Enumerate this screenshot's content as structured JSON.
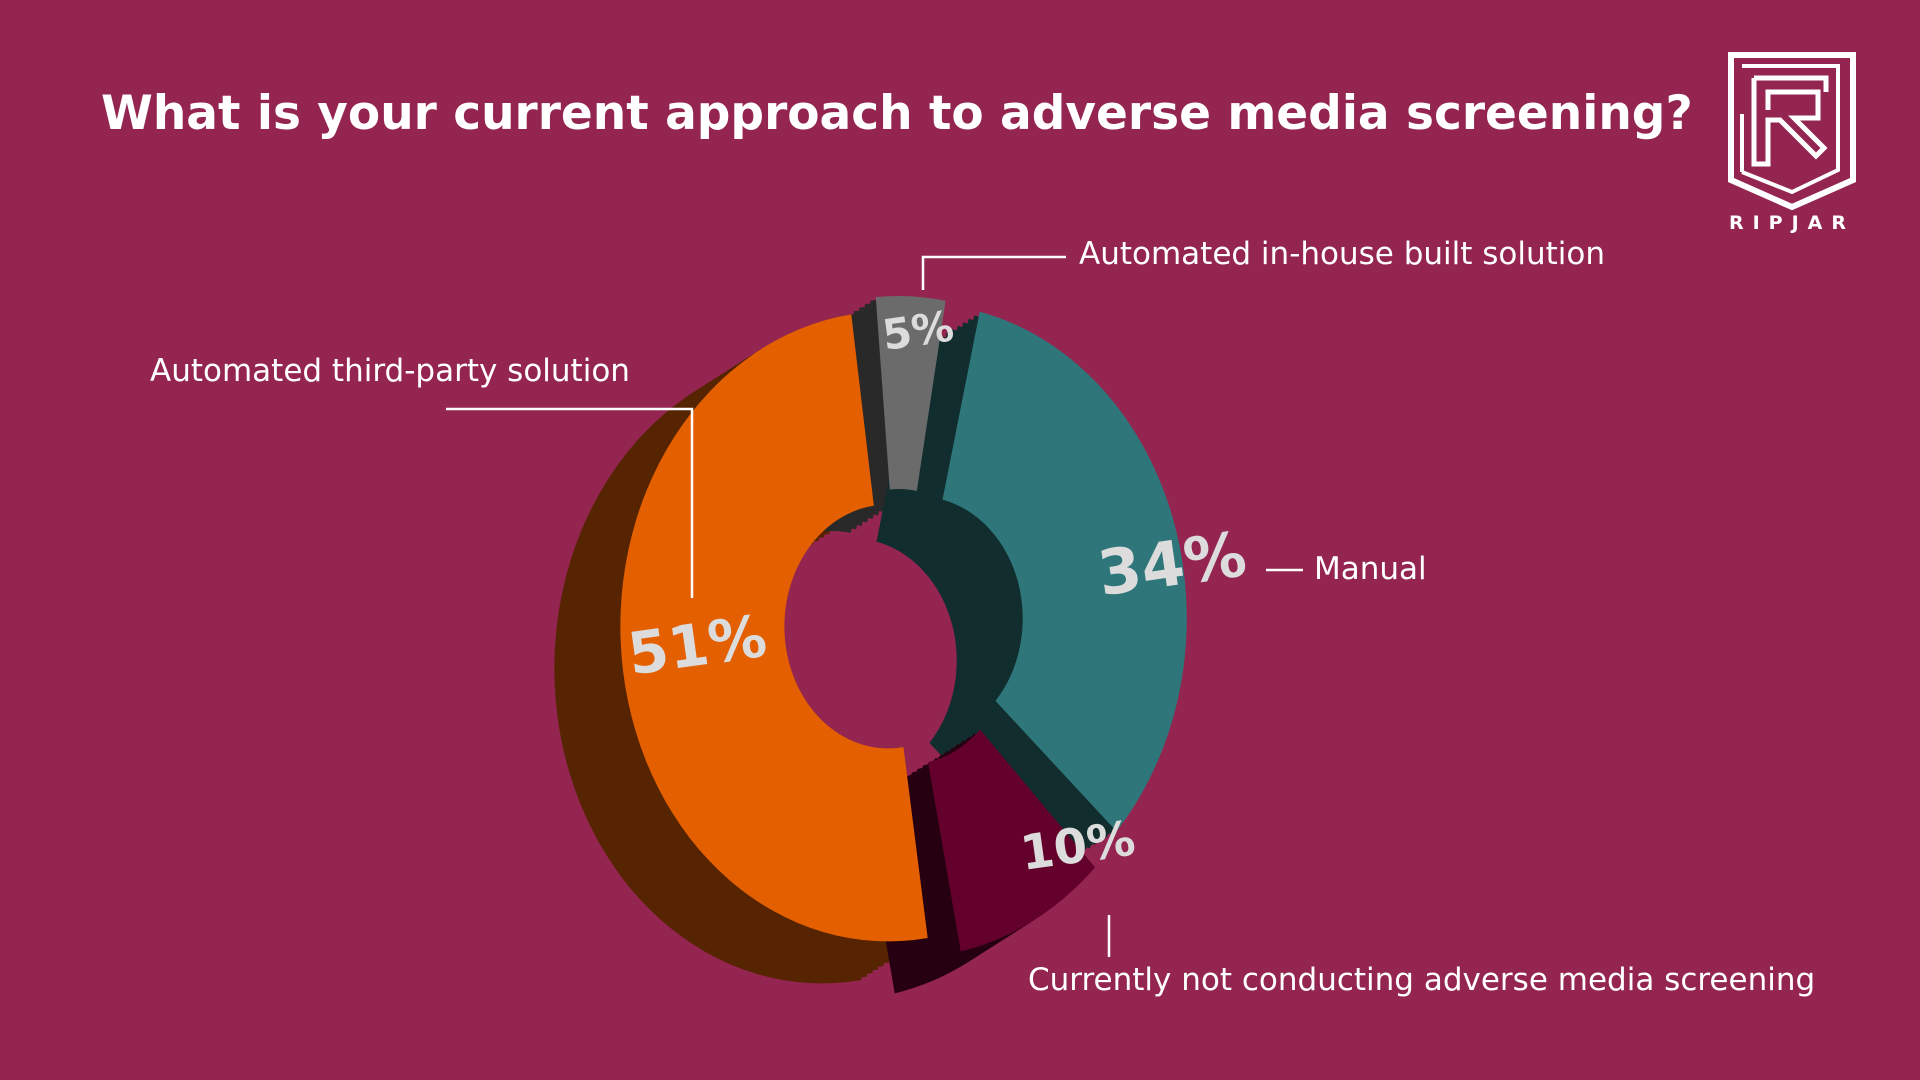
{
  "chart_data": {
    "type": "pie",
    "title": "What is your current approach to adverse media screening?",
    "donut": true,
    "three_d": true,
    "slices": [
      {
        "label": "Automated third-party solution",
        "value": 51,
        "display": "51%",
        "color": "#E35F00"
      },
      {
        "label": "Automated in-house built solution",
        "value": 5,
        "display": "5%",
        "color": "#6B6B6B"
      },
      {
        "label": "Manual",
        "value": 34,
        "display": "34%",
        "color": "#2E7679"
      },
      {
        "label": "Currently not conducting adverse media screening",
        "value": 10,
        "display": "10%",
        "color": "#64002C"
      }
    ]
  },
  "background_color": "#932550",
  "logo": {
    "text": "RIPJAR",
    "icon": "ripjar-shield-r-logo"
  }
}
